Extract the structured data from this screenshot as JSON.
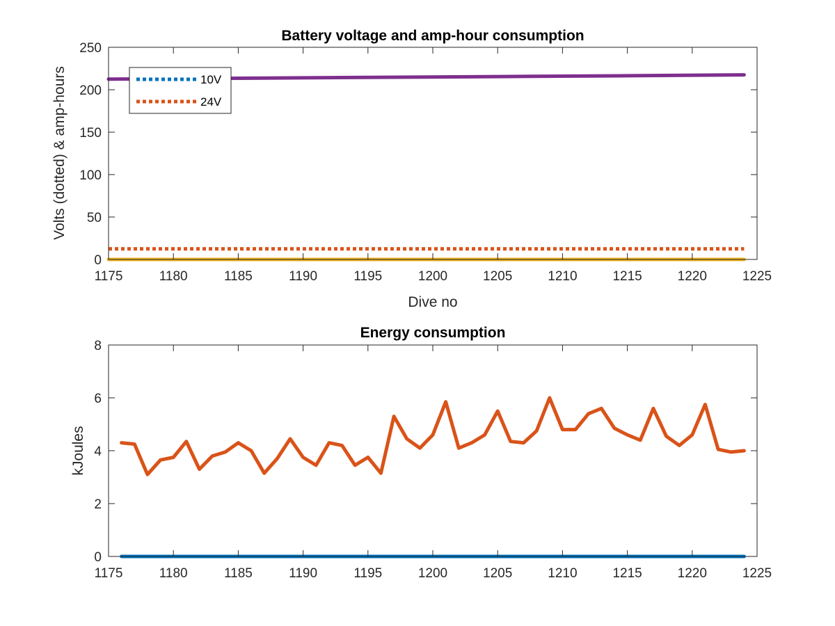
{
  "chart_data": [
    {
      "type": "line",
      "title": "Battery voltage and amp-hour consumption",
      "xlabel": "Dive no",
      "ylabel": "Volts (dotted) & amp-hours",
      "xlim": [
        1175,
        1225
      ],
      "ylim": [
        0,
        250
      ],
      "xticks": [
        "1175",
        "1180",
        "1185",
        "1190",
        "1195",
        "1200",
        "1205",
        "1210",
        "1215",
        "1220",
        "1225"
      ],
      "yticks": [
        "0",
        "50",
        "100",
        "150",
        "200",
        "250"
      ],
      "grid": false,
      "legend": {
        "position": "top-left",
        "entries": [
          "10V",
          "24V"
        ]
      },
      "series": [
        {
          "name": "10V",
          "style": "dotted",
          "color": "#0072BD",
          "x": [
            1175,
            1224
          ],
          "y": [
            0,
            0
          ]
        },
        {
          "name": "24V",
          "style": "dotted",
          "color": "#D95319",
          "x": [
            1175,
            1224
          ],
          "y": [
            12.5,
            12.5
          ]
        },
        {
          "style": "solid",
          "color": "#EDB120",
          "x": [
            1175,
            1224
          ],
          "y": [
            0,
            0
          ]
        },
        {
          "style": "solid",
          "color": "#7E2F8E",
          "x": [
            1175,
            1185,
            1195,
            1205,
            1215,
            1224
          ],
          "y": [
            212.5,
            213.5,
            214.5,
            215.5,
            216.5,
            217.5
          ]
        }
      ]
    },
    {
      "type": "line",
      "title": "Energy consumption",
      "xlabel": "",
      "ylabel": "kJoules",
      "xlim": [
        1175,
        1225
      ],
      "ylim": [
        0,
        8
      ],
      "xticks": [
        "1175",
        "1180",
        "1185",
        "1190",
        "1195",
        "1200",
        "1205",
        "1210",
        "1215",
        "1220",
        "1225"
      ],
      "yticks": [
        "0",
        "2",
        "4",
        "6",
        "8"
      ],
      "grid": false,
      "series": [
        {
          "style": "solid",
          "color": "#0072BD",
          "x": [
            1176,
            1224
          ],
          "y": [
            0,
            0
          ]
        },
        {
          "style": "solid",
          "color": "#D95319",
          "x": [
            1176,
            1177,
            1178,
            1179,
            1180,
            1181,
            1182,
            1183,
            1184,
            1185,
            1186,
            1187,
            1188,
            1189,
            1190,
            1191,
            1192,
            1193,
            1194,
            1195,
            1196,
            1197,
            1198,
            1199,
            1200,
            1201,
            1202,
            1203,
            1204,
            1205,
            1206,
            1207,
            1208,
            1209,
            1210,
            1211,
            1212,
            1213,
            1214,
            1215,
            1216,
            1217,
            1218,
            1219,
            1220,
            1221,
            1222,
            1223,
            1224
          ],
          "y": [
            4.3,
            4.25,
            3.1,
            3.65,
            3.75,
            4.35,
            3.3,
            3.8,
            3.95,
            4.3,
            4.0,
            3.15,
            3.7,
            4.45,
            3.75,
            3.45,
            4.3,
            4.2,
            3.45,
            3.75,
            3.15,
            5.3,
            4.45,
            4.1,
            4.6,
            5.85,
            4.1,
            4.3,
            4.6,
            5.5,
            4.35,
            4.3,
            4.75,
            6.0,
            4.8,
            4.8,
            5.4,
            5.6,
            4.85,
            4.6,
            4.4,
            5.6,
            4.55,
            4.2,
            4.6,
            5.75,
            4.05,
            3.95,
            4.0
          ]
        }
      ]
    }
  ]
}
